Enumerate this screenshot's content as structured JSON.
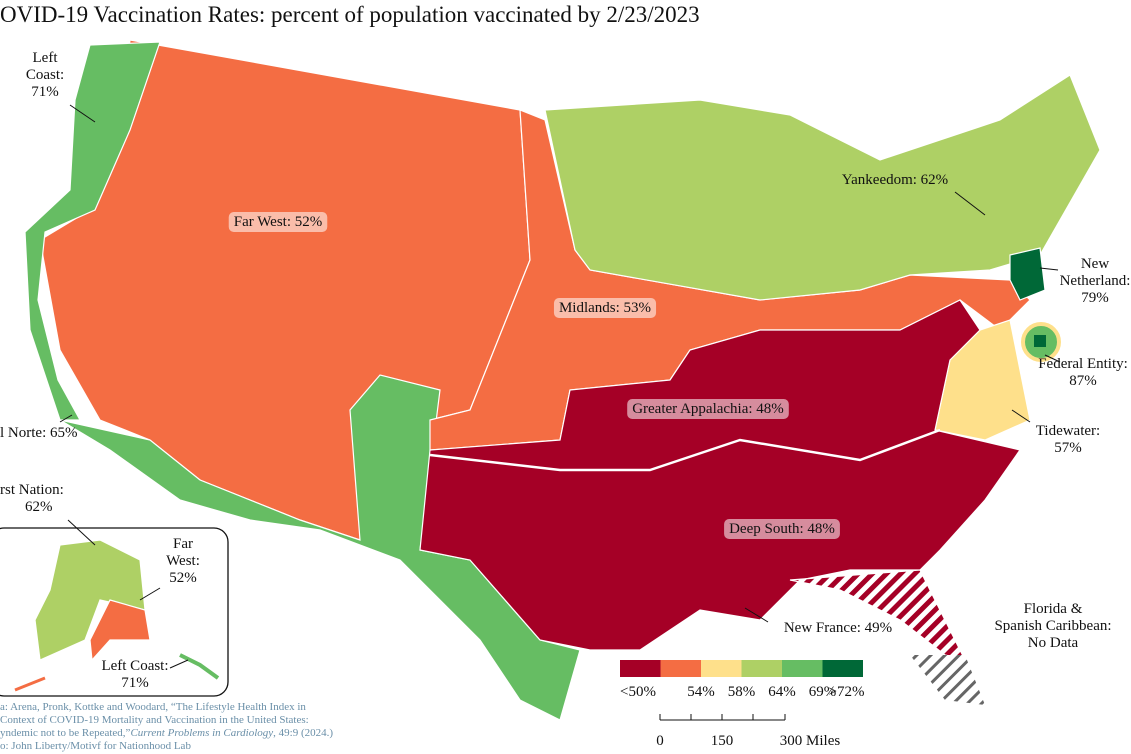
{
  "map": {
    "title": "OVID-19 Vaccination Rates: percent of population vaccinated by 2/23/2023",
    "labels": [
      {
        "lines": [
          "Left",
          "Coast:",
          "71%"
        ]
      },
      {
        "lines": [
          "Far West: 52%"
        ]
      },
      {
        "lines": [
          "Yankeedom: 62%"
        ]
      },
      {
        "lines": [
          "New",
          "Netherland:",
          "79%"
        ]
      },
      {
        "lines": [
          "Midlands: 53%"
        ]
      },
      {
        "lines": [
          "Federal Entity:",
          "87%"
        ]
      },
      {
        "lines": [
          "Greater Appalachia: 48%"
        ]
      },
      {
        "lines": [
          "l Norte: 65%"
        ]
      },
      {
        "lines": [
          "Tidewater:",
          "57%"
        ]
      },
      {
        "lines": [
          "rst Nation:",
          "62%"
        ]
      },
      {
        "lines": [
          "Far",
          "West:",
          "52%"
        ]
      },
      {
        "lines": [
          "Deep South: 48%"
        ]
      },
      {
        "lines": [
          "New France: 49%"
        ]
      },
      {
        "lines": [
          "Florida &",
          "Spanish Caribbean:",
          "No Data"
        ]
      },
      {
        "lines": [
          "Left Coast:",
          "71%"
        ]
      }
    ],
    "legend": {
      "labels": [
        "<50%",
        "54%",
        "58%",
        "64%",
        "69%",
        ">72%"
      ],
      "colors": [
        "#a50026",
        "#f46d43",
        "#fee08b",
        "#aed065",
        "#66bd63",
        "#006837"
      ]
    },
    "scale": {
      "labels": [
        "0",
        "150",
        "300 Miles"
      ]
    },
    "source": {
      "lines": [
        [
          "a: Arena, Pronk, Kottke and Woodard, “The Lifestyle Health Index in"
        ],
        [
          "Context of COVID-19 Mortality and Vaccination in the United States:"
        ],
        [
          "yndemic not to be Repeated,”",
          "Current Problems in Cardiology",
          ", 49:9 (2024.)"
        ],
        [
          "o: John Liberty/Motivf for Nationhood Lab"
        ]
      ]
    }
  }
}
